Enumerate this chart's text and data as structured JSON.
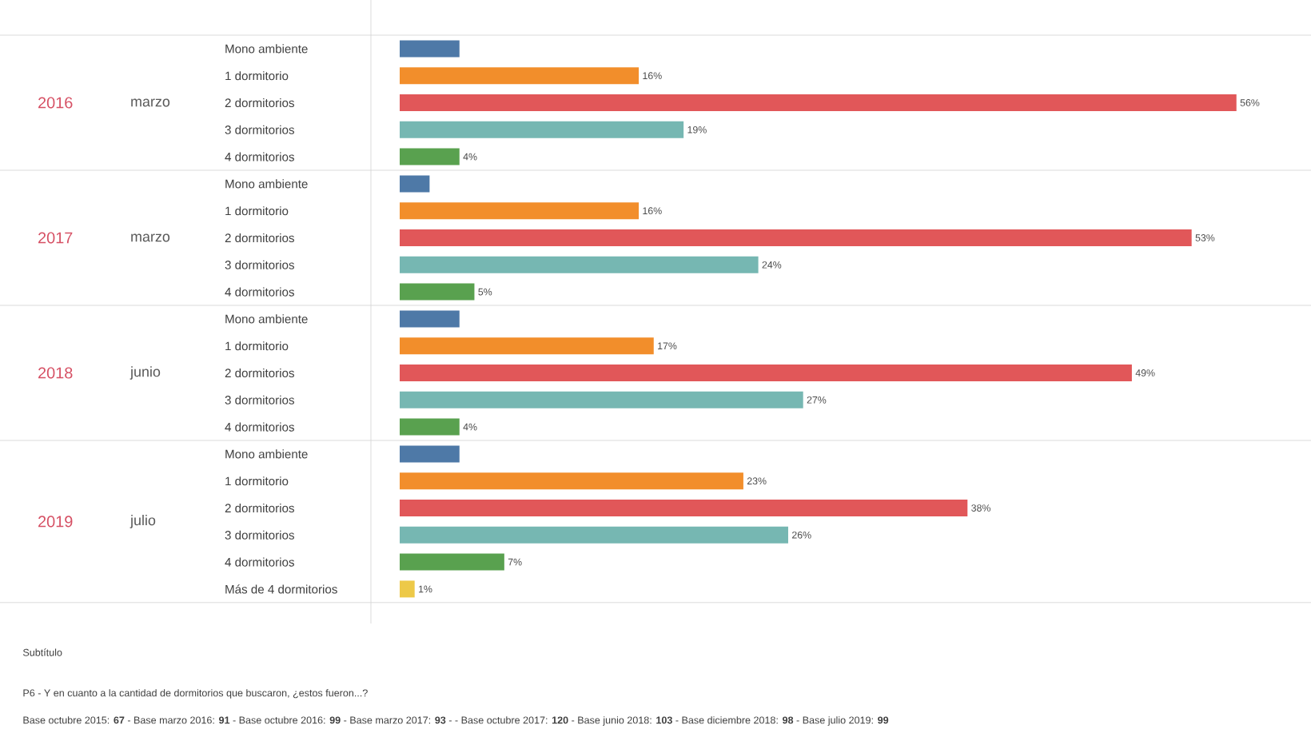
{
  "chart_data": [
    {
      "type": "bar",
      "orientation": "horizontal",
      "ylabel": "2016",
      "subtitle": "marzo",
      "categories": [
        "Mono ambiente",
        "1 dormitorio",
        "2 dormitorios",
        "3 dormitorios",
        "4 dormitorios"
      ],
      "values": [
        4,
        16,
        56,
        19,
        4
      ],
      "colors": [
        "#4e79a7",
        "#f28e2b",
        "#e15759",
        "#76b7b2",
        "#59a14f"
      ],
      "value_labels": [
        null,
        "16%",
        "56%",
        "19%",
        "4%"
      ],
      "tick_labels": "y"
    },
    {
      "type": "bar",
      "orientation": "horizontal",
      "ylabel": "2017",
      "subtitle": "marzo",
      "categories": [
        "Mono ambiente",
        "1 dormitorio",
        "2 dormitorios",
        "3 dormitorios",
        "4 dormitorios"
      ],
      "values": [
        2,
        16,
        53,
        24,
        5
      ],
      "colors": [
        "#4e79a7",
        "#f28e2b",
        "#e15759",
        "#76b7b2",
        "#59a14f"
      ],
      "value_labels": [
        null,
        "16%",
        "53%",
        "24%",
        "5%"
      ],
      "tick_labels": "y"
    },
    {
      "type": "bar",
      "orientation": "horizontal",
      "ylabel": "2018",
      "subtitle": "junio",
      "categories": [
        "Mono ambiente",
        "1 dormitorio",
        "2 dormitorios",
        "3 dormitorios",
        "4 dormitorios"
      ],
      "values": [
        4,
        17,
        49,
        27,
        4
      ],
      "colors": [
        "#4e79a7",
        "#f28e2b",
        "#e15759",
        "#76b7b2",
        "#59a14f"
      ],
      "value_labels": [
        null,
        "17%",
        "49%",
        "27%",
        "4%"
      ],
      "tick_labels": "y"
    },
    {
      "type": "bar",
      "orientation": "horizontal",
      "ylabel": "2019",
      "subtitle": "julio",
      "categories": [
        "Mono ambiente",
        "1 dormitorio",
        "2 dormitorios",
        "3 dormitorios",
        "4 dormitorios",
        "Más de 4 dormitorios"
      ],
      "values": [
        4,
        23,
        38,
        26,
        7,
        1
      ],
      "colors": [
        "#4e79a7",
        "#f28e2b",
        "#e15759",
        "#76b7b2",
        "#59a14f",
        "#edc948"
      ],
      "value_labels": [
        null,
        "23%",
        "38%",
        "26%",
        "7%",
        "1%"
      ],
      "tick_labels": "y",
      "annotations": [
        "Subtítulo",
        "P6 - Y en cuanto a la cantidad de dormitorios que buscaron, ¿estos fueron...?",
        "Base octubre 2015: **67** - Base marzo 2016: **91** - Base octubre 2016: **99** - Base marzo 2017: **93** - - Base octubre 2017: **120** - Base junio 2018: **103** - Base diciembre 2018: **98** - Base julio 2019: **99**"
      ]
    }
  ]
}
